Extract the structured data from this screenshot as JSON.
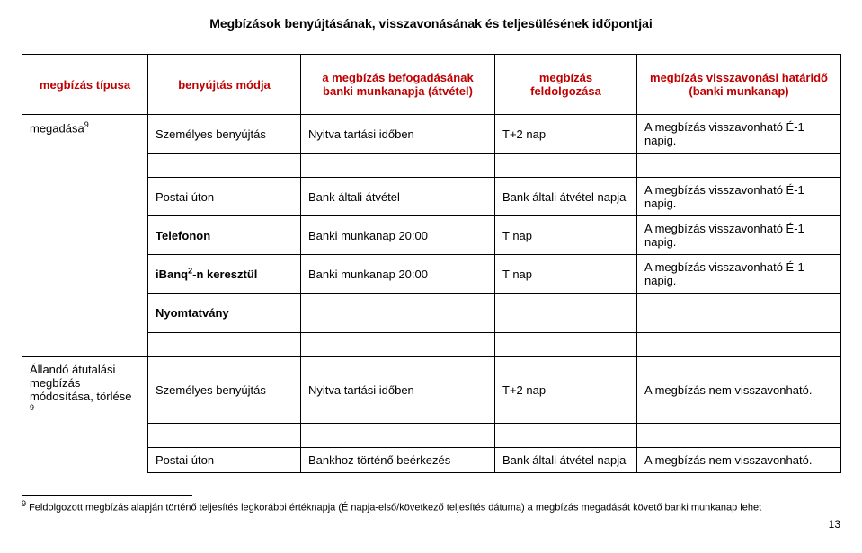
{
  "doc_title": "Megbízások benyújtásának, visszavonásának és teljesülésének időpontjai",
  "head": {
    "c1": "megbízás típusa",
    "c2": "benyújtás módja",
    "c3": "a megbízás befogadásának banki munkanapja (átvétel)",
    "c4": "megbízás feldolgozása",
    "c5": "megbízás visszavonási határidő (banki munkanap)"
  },
  "row0": {
    "label": "megadása",
    "sup": "9"
  },
  "r1": {
    "c2": "Személyes benyújtás",
    "c3": "Nyitva tartási időben",
    "c4": "T+2 nap",
    "c5": "A megbízás visszavonható É-1 napig."
  },
  "r2": {
    "c2": "Postai úton",
    "c3": "Bank általi átvétel",
    "c4": "Bank általi átvétel napja",
    "c5": "A megbízás visszavonható É-1 napig."
  },
  "r3": {
    "c2": "Telefonon",
    "c3": "Banki munkanap 20:00",
    "c4": "T nap",
    "c5": "A megbízás visszavonható É-1 napig."
  },
  "r4": {
    "c2_pre": "iBanq",
    "c2_sup": "2",
    "c2_post": "-n keresztül",
    "c3": "Banki munkanap 20:00",
    "c4": "T nap",
    "c5": "A megbízás visszavonható É-1 napig."
  },
  "r5": {
    "c2": "Nyomtatvány"
  },
  "r6": {
    "label": "Állandó átutalási megbízás módosítása, törlése",
    "sup": "9",
    "c2": "Személyes benyújtás",
    "c3": "Nyitva tartási időben",
    "c4": "T+2 nap",
    "c5": "A megbízás nem visszavonható."
  },
  "r7": {
    "c2": "Postai úton",
    "c3": "Bankhoz történő beérkezés",
    "c4": "Bank általi átvétel napja",
    "c5": "A megbízás nem visszavonható."
  },
  "footnote": {
    "sup": "9",
    "text": " Feldolgozott megbízás alapján történő teljesítés legkorábbi értéknapja (É napja-első/következő teljesítés dátuma) a megbízás megadását követő banki munkanap lehet"
  },
  "page_num": "13"
}
